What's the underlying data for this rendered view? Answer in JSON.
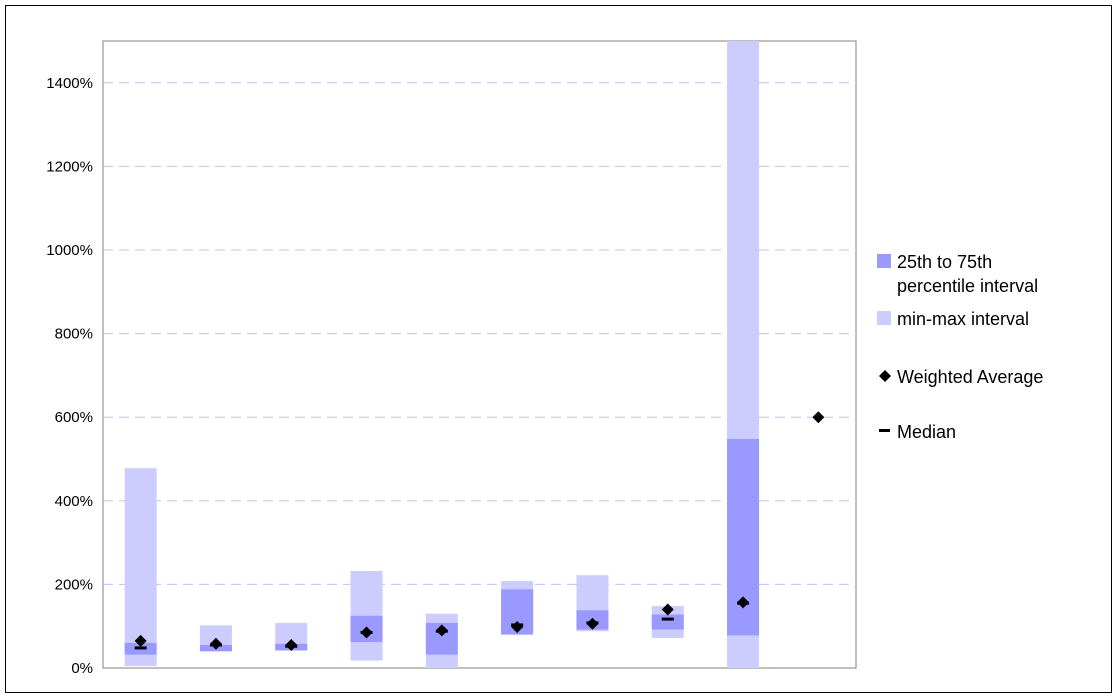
{
  "chart_data": {
    "type": "box-range",
    "y_ticks": [
      "0%",
      "200%",
      "400%",
      "600%",
      "800%",
      "1000%",
      "1200%",
      "1400%"
    ],
    "ylim": [
      0,
      1500
    ],
    "grid": true,
    "legend_position": "right",
    "legend": [
      {
        "label_lines": [
          "25th to 75th",
          "percentile interval"
        ],
        "marker": "square",
        "color": "#9999ff"
      },
      {
        "label_lines": [
          "min-max interval"
        ],
        "marker": "square",
        "color": "#ccccff"
      },
      {
        "label_lines": [
          "Weighted Average"
        ],
        "marker": "diamond",
        "color": "#000000"
      },
      {
        "label_lines": [
          "Median"
        ],
        "marker": "dash",
        "color": "#000000"
      }
    ],
    "colors": {
      "minmax": "#ccccff",
      "iqr": "#9999ff",
      "average": "#000000",
      "median": "#000000",
      "grid": "#c0c0ff"
    },
    "categories": [
      "",
      "",
      "",
      "",
      "",
      "",
      "",
      "",
      "",
      ""
    ],
    "series": [
      {
        "min": 5,
        "max": 478,
        "q1": 32,
        "q3": 60,
        "median": 48,
        "average": 65
      },
      {
        "min": 40,
        "max": 102,
        "q1": 40,
        "q3": 55,
        "median": 55,
        "average": 58
      },
      {
        "min": 42,
        "max": 108,
        "q1": 42,
        "q3": 58,
        "median": 52,
        "average": 55
      },
      {
        "min": 18,
        "max": 232,
        "q1": 62,
        "q3": 125,
        "median": 85,
        "average": 85
      },
      {
        "min": 0,
        "max": 130,
        "q1": 32,
        "q3": 108,
        "median": 88,
        "average": 90
      },
      {
        "min": 80,
        "max": 208,
        "q1": 80,
        "q3": 188,
        "median": 103,
        "average": 98
      },
      {
        "min": 88,
        "max": 222,
        "q1": 92,
        "q3": 138,
        "median": 108,
        "average": 106
      },
      {
        "min": 72,
        "max": 148,
        "q1": 92,
        "q3": 128,
        "median": 117,
        "average": 140
      },
      {
        "min": 0,
        "max": 1510,
        "q1": 78,
        "q3": 548,
        "median": 155,
        "average": 157
      },
      {
        "min": null,
        "max": null,
        "q1": null,
        "q3": null,
        "median": null,
        "average": 600
      }
    ]
  }
}
